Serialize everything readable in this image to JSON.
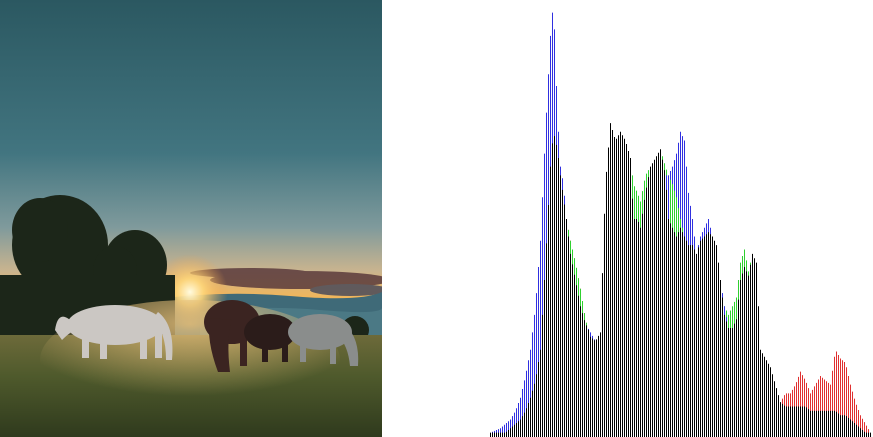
{
  "photo": {
    "subject": "sunset-meadow-horses",
    "colors": {
      "sky_top": "#2d5a63",
      "sky_mid": "#4a7b80",
      "haze": "#9aa6a3",
      "glow": "#f2b25a",
      "sun": "#fff3c4",
      "cloud": "#5a3a3a",
      "hills": "#3d6470",
      "tree": "#1e2a1c",
      "grass": "#4b5a2a",
      "horse_white": "#c9c6c2",
      "horse_dark": "#3a2520",
      "horse_grey": "#8d8f8e"
    }
  },
  "histogram": {
    "colors": {
      "red": "#e03030",
      "green": "#30d030",
      "blue": "#3030e0",
      "black": "#000000"
    },
    "bins": [
      [
        490,
        0.01,
        0.01,
        0.01
      ],
      [
        495,
        0.01,
        0.01,
        0.015
      ],
      [
        500,
        0.01,
        0.01,
        0.02
      ],
      [
        505,
        0.01,
        0.01,
        0.03
      ],
      [
        510,
        0.02,
        0.02,
        0.04
      ],
      [
        515,
        0.03,
        0.03,
        0.06
      ],
      [
        520,
        0.04,
        0.04,
        0.09
      ],
      [
        525,
        0.06,
        0.06,
        0.14
      ],
      [
        530,
        0.09,
        0.09,
        0.2
      ],
      [
        535,
        0.13,
        0.13,
        0.3
      ],
      [
        540,
        0.2,
        0.2,
        0.45
      ],
      [
        545,
        0.4,
        0.4,
        0.7
      ],
      [
        550,
        0.62,
        0.62,
        0.92
      ],
      [
        553,
        0.7,
        0.7,
        1.0
      ],
      [
        557,
        0.66,
        0.66,
        0.74
      ],
      [
        560,
        0.6,
        0.6,
        0.62
      ],
      [
        563,
        0.55,
        0.55,
        0.58
      ],
      [
        566,
        0.5,
        0.5,
        0.5
      ],
      [
        570,
        0.45,
        0.45,
        0.42
      ],
      [
        575,
        0.4,
        0.4,
        0.36
      ],
      [
        580,
        0.34,
        0.34,
        0.3
      ],
      [
        585,
        0.27,
        0.27,
        0.26
      ],
      [
        590,
        0.23,
        0.23,
        0.24
      ],
      [
        595,
        0.22,
        0.22,
        0.22
      ],
      [
        600,
        0.24,
        0.24,
        0.24
      ],
      [
        605,
        0.58,
        0.58,
        0.58
      ],
      [
        610,
        0.72,
        0.72,
        0.72
      ],
      [
        615,
        0.68,
        0.68,
        0.68
      ],
      [
        620,
        0.7,
        0.7,
        0.7
      ],
      [
        625,
        0.68,
        0.68,
        0.68
      ],
      [
        630,
        0.64,
        0.64,
        0.64
      ],
      [
        633,
        0.5,
        0.58,
        0.5
      ],
      [
        637,
        0.5,
        0.56,
        0.5
      ],
      [
        640,
        0.48,
        0.54,
        0.48
      ],
      [
        645,
        0.56,
        0.6,
        0.56
      ],
      [
        650,
        0.62,
        0.62,
        0.62
      ],
      [
        655,
        0.64,
        0.64,
        0.64
      ],
      [
        660,
        0.66,
        0.66,
        0.66
      ],
      [
        665,
        0.6,
        0.62,
        0.6
      ],
      [
        668,
        0.5,
        0.6,
        0.6
      ],
      [
        672,
        0.48,
        0.58,
        0.62
      ],
      [
        676,
        0.46,
        0.55,
        0.65
      ],
      [
        680,
        0.48,
        0.5,
        0.7
      ],
      [
        684,
        0.46,
        0.46,
        0.68
      ],
      [
        688,
        0.44,
        0.44,
        0.56
      ],
      [
        692,
        0.44,
        0.44,
        0.5
      ],
      [
        696,
        0.42,
        0.42,
        0.42
      ],
      [
        700,
        0.45,
        0.45,
        0.46
      ],
      [
        704,
        0.46,
        0.46,
        0.48
      ],
      [
        708,
        0.47,
        0.47,
        0.5
      ],
      [
        712,
        0.46,
        0.46,
        0.46
      ],
      [
        716,
        0.44,
        0.44,
        0.44
      ],
      [
        720,
        0.36,
        0.36,
        0.36
      ],
      [
        724,
        0.28,
        0.3,
        0.3
      ],
      [
        728,
        0.25,
        0.28,
        0.25
      ],
      [
        732,
        0.25,
        0.3,
        0.25
      ],
      [
        736,
        0.27,
        0.32,
        0.27
      ],
      [
        740,
        0.36,
        0.4,
        0.36
      ],
      [
        744,
        0.39,
        0.43,
        0.39
      ],
      [
        748,
        0.37,
        0.38,
        0.37
      ],
      [
        752,
        0.42,
        0.42,
        0.42
      ],
      [
        756,
        0.4,
        0.4,
        0.4
      ],
      [
        760,
        0.2,
        0.2,
        0.2
      ],
      [
        765,
        0.18,
        0.18,
        0.18
      ],
      [
        770,
        0.16,
        0.16,
        0.16
      ],
      [
        775,
        0.12,
        0.12,
        0.12
      ],
      [
        780,
        0.08,
        0.08,
        0.08
      ],
      [
        785,
        0.1,
        0.07,
        0.07
      ],
      [
        790,
        0.1,
        0.07,
        0.07
      ],
      [
        795,
        0.12,
        0.07,
        0.07
      ],
      [
        800,
        0.15,
        0.07,
        0.07
      ],
      [
        805,
        0.13,
        0.07,
        0.07
      ],
      [
        810,
        0.1,
        0.06,
        0.06
      ],
      [
        815,
        0.12,
        0.06,
        0.06
      ],
      [
        820,
        0.14,
        0.06,
        0.06
      ],
      [
        825,
        0.13,
        0.06,
        0.06
      ],
      [
        830,
        0.12,
        0.06,
        0.06
      ],
      [
        835,
        0.2,
        0.06,
        0.06
      ],
      [
        840,
        0.18,
        0.05,
        0.05
      ],
      [
        845,
        0.17,
        0.05,
        0.05
      ],
      [
        850,
        0.12,
        0.04,
        0.04
      ],
      [
        855,
        0.08,
        0.03,
        0.03
      ],
      [
        860,
        0.05,
        0.02,
        0.02
      ],
      [
        865,
        0.03,
        0.01,
        0.01
      ],
      [
        870,
        0.01,
        0.01,
        0.01
      ]
    ]
  }
}
